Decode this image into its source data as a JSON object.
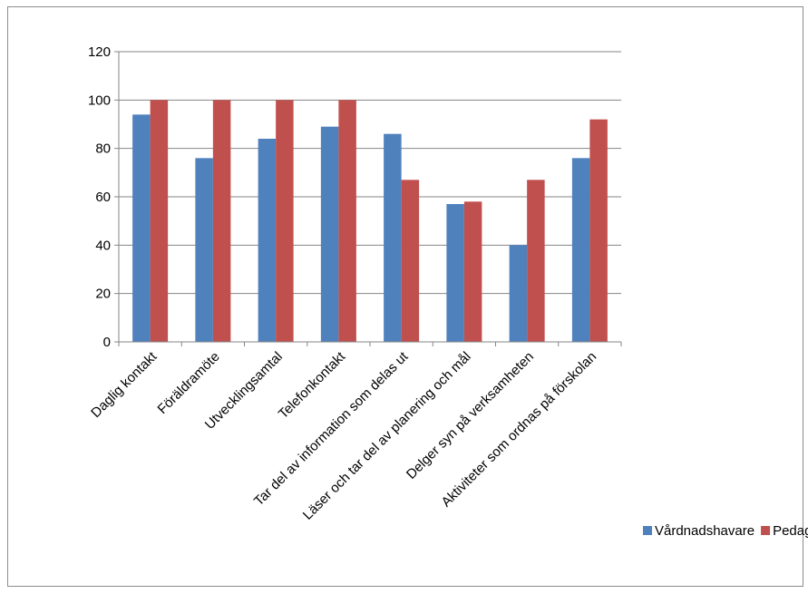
{
  "chart_data": {
    "type": "bar",
    "title": "",
    "xlabel": "",
    "ylabel": "",
    "ylim": [
      0,
      120
    ],
    "yticks": [
      0,
      20,
      40,
      60,
      80,
      100,
      120
    ],
    "grid": true,
    "legend_position": "bottom-right",
    "categories": [
      "Daglig kontakt",
      "Föräldramöte",
      "Utvecklingsamtal",
      "Telefonkontakt",
      "Tar del av information som delas ut",
      "Läser och tar del av planering och mål",
      "Delger syn på verksamheten",
      "Aktiviteter som ordnas på förskolan"
    ],
    "series": [
      {
        "name": "Vårdnadshavare",
        "color": "#4F81BD",
        "values": [
          94,
          76,
          84,
          89,
          86,
          57,
          40,
          76
        ]
      },
      {
        "name": "Pedagoger",
        "color": "#C0504D",
        "values": [
          100,
          100,
          100,
          100,
          67,
          58,
          67,
          92
        ]
      }
    ]
  }
}
